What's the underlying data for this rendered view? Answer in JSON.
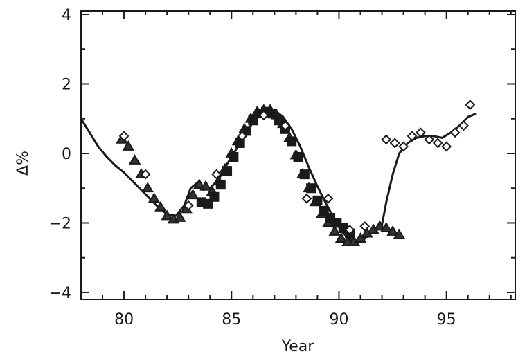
{
  "chart_data": {
    "type": "scatter",
    "title": "",
    "xlabel": "Year",
    "ylabel": "Δ%",
    "xlim": [
      78,
      98.2
    ],
    "ylim": [
      -4.2,
      4.1
    ],
    "x_ticks": [
      80,
      85,
      90,
      95
    ],
    "x_tick_labels": [
      "80",
      "85",
      "90",
      "95"
    ],
    "y_ticks": [
      -4,
      -2,
      0,
      2,
      4
    ],
    "y_tick_labels": [
      "−4",
      "−2",
      "0",
      "2",
      "4"
    ],
    "grid": false,
    "series": [
      {
        "style": "solid line",
        "x": [
          78.0,
          78.4,
          78.8,
          79.2,
          79.6,
          80.0,
          80.4,
          80.8,
          81.2,
          81.6,
          82.0,
          82.4,
          82.8,
          83.1,
          83.4,
          83.7,
          84.0,
          84.4,
          84.8,
          85.2,
          85.6,
          86.0,
          86.4,
          86.8,
          87.0,
          87.4,
          87.8,
          88.2,
          88.6,
          89.0,
          89.4,
          89.8,
          90.2,
          90.6,
          91.0,
          91.3,
          91.6,
          91.8,
          92.0,
          92.2,
          92.5,
          92.8,
          93.2,
          93.6,
          94.0,
          94.4,
          94.8,
          95.2,
          95.6,
          96.0,
          96.4
        ],
        "y": [
          1.0,
          0.6,
          0.2,
          -0.1,
          -0.35,
          -0.55,
          -0.8,
          -1.05,
          -1.3,
          -1.55,
          -1.75,
          -1.8,
          -1.5,
          -1.0,
          -0.85,
          -1.05,
          -1.0,
          -0.75,
          -0.3,
          0.1,
          0.5,
          0.9,
          1.15,
          1.25,
          1.25,
          1.05,
          0.7,
          0.2,
          -0.4,
          -0.95,
          -1.45,
          -1.9,
          -2.3,
          -2.5,
          -2.55,
          -2.4,
          -2.25,
          -2.1,
          -2.05,
          -1.4,
          -0.6,
          0.0,
          0.3,
          0.45,
          0.5,
          0.5,
          0.45,
          0.6,
          0.8,
          1.05,
          1.15
        ]
      },
      {
        "style": "triangle markers",
        "x": [
          79.9,
          80.2,
          80.5,
          80.8,
          81.1,
          81.4,
          81.7,
          82.0,
          82.3,
          82.6,
          82.9,
          83.2,
          83.5,
          83.8,
          84.1,
          84.4,
          84.7,
          85.0,
          85.3,
          85.6,
          85.9,
          86.2,
          86.5,
          86.8,
          87.1,
          87.4,
          87.7,
          88.0,
          88.3,
          88.6,
          88.9,
          89.2,
          89.5,
          89.8,
          90.1,
          90.4,
          90.7,
          91.0,
          91.3,
          91.6,
          91.9,
          92.2,
          92.5,
          92.8
        ],
        "y": [
          0.4,
          0.2,
          -0.2,
          -0.6,
          -1.0,
          -1.3,
          -1.55,
          -1.8,
          -1.9,
          -1.85,
          -1.6,
          -1.2,
          -0.9,
          -0.95,
          -1.1,
          -0.8,
          -0.45,
          0.0,
          0.35,
          0.7,
          1.0,
          1.2,
          1.25,
          1.25,
          1.1,
          0.85,
          0.45,
          -0.05,
          -0.6,
          -1.0,
          -1.4,
          -1.75,
          -2.0,
          -2.25,
          -2.45,
          -2.55,
          -2.55,
          -2.45,
          -2.3,
          -2.2,
          -2.1,
          -2.15,
          -2.25,
          -2.35
        ]
      },
      {
        "style": "filled square markers",
        "x": [
          83.6,
          83.9,
          84.2,
          84.5,
          84.8,
          85.1,
          85.4,
          85.7,
          86.0,
          86.3,
          86.6,
          86.9,
          87.2,
          87.5,
          87.8,
          88.1,
          88.4,
          88.7,
          89.0,
          89.3,
          89.6,
          89.9,
          90.2,
          90.5
        ],
        "y": [
          -1.4,
          -1.45,
          -1.25,
          -0.9,
          -0.5,
          -0.1,
          0.3,
          0.65,
          0.95,
          1.15,
          1.2,
          1.15,
          0.95,
          0.7,
          0.35,
          -0.1,
          -0.6,
          -1.0,
          -1.35,
          -1.65,
          -1.85,
          -2.0,
          -2.15,
          -2.3
        ]
      },
      {
        "style": "open diamond markers",
        "x": [
          80.0,
          81.0,
          83.0,
          84.3,
          85.5,
          86.5,
          87.5,
          88.5,
          89.5,
          90.5,
          91.2,
          92.2,
          92.6,
          93.0,
          93.4,
          93.8,
          94.2,
          94.6,
          95.0,
          95.4,
          95.8,
          96.1
        ],
        "y": [
          0.5,
          -0.6,
          -1.5,
          -0.6,
          0.5,
          1.1,
          0.8,
          -1.3,
          -1.3,
          -2.2,
          -2.1,
          0.4,
          0.3,
          0.2,
          0.5,
          0.6,
          0.4,
          0.3,
          0.2,
          0.6,
          0.8,
          1.4
        ]
      }
    ]
  }
}
